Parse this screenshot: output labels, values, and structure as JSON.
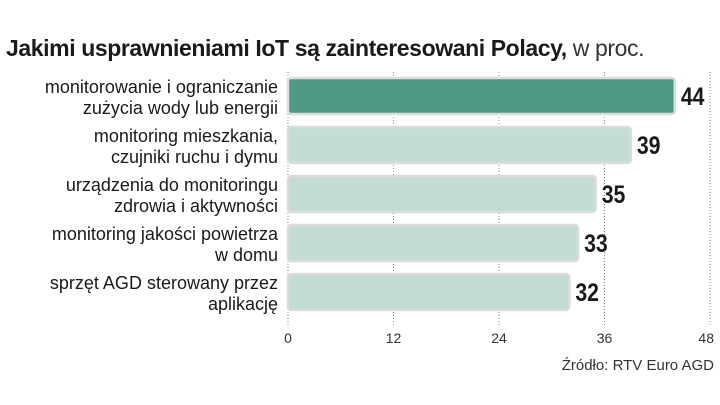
{
  "header": {
    "title": "Jakimi usprawnieniami IoT są zainteresowani Polacy,",
    "unit": " w proc."
  },
  "source": "Źródło: RTV Euro AGD",
  "colors": {
    "highlight": "#4f9a87",
    "bar": "#c3ddd4",
    "bar_border": "#dcdcdc",
    "grid": "#888888",
    "text": "#1a1a1a"
  },
  "chart_data": {
    "type": "bar",
    "orientation": "horizontal",
    "categories": [
      [
        "monitorowanie i ograniczanie",
        "zużycia wody lub energii"
      ],
      [
        "monitoring mieszkania,",
        "czujniki ruchu i dymu"
      ],
      [
        "urządzenia do monitoringu",
        "zdrowia i aktywności"
      ],
      [
        "monitoring jakości powietrza",
        "w domu"
      ],
      [
        "sprzęt AGD sterowany przez",
        "aplikację"
      ]
    ],
    "values": [
      44,
      39,
      35,
      33,
      32
    ],
    "highlight_index": 0,
    "xlim": [
      0,
      48
    ],
    "xticks": [
      0,
      12,
      24,
      36,
      48
    ],
    "grid": true
  }
}
